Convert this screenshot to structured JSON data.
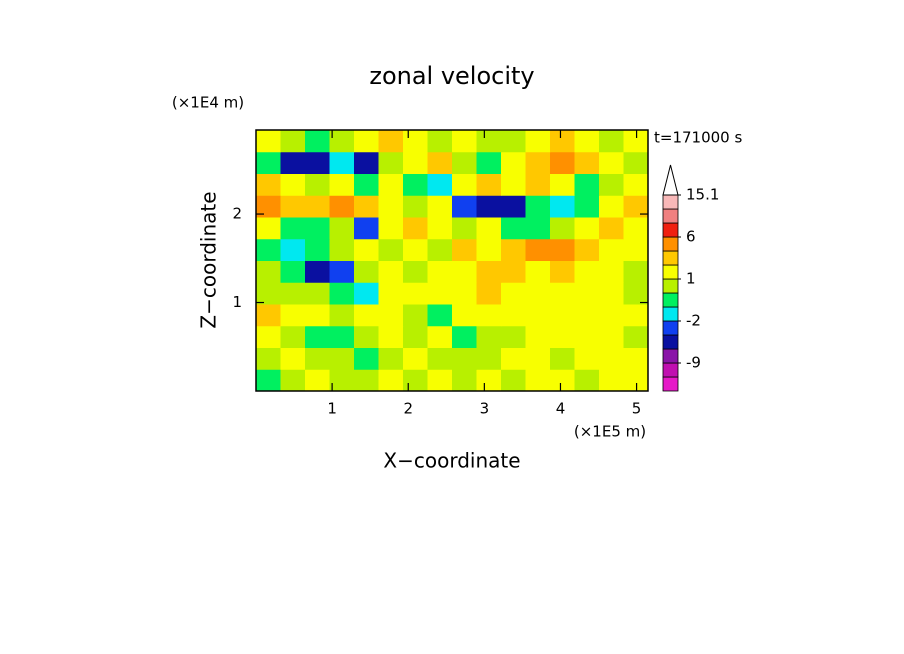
{
  "chart_data": {
    "type": "contour",
    "title": "zonal velocity",
    "xlabel": "X−coordinate",
    "ylabel": "Z−coordinate",
    "xunit": "(×1E5 m)",
    "yunit": "(×1E4 m)",
    "annotation": "t=171000 s",
    "xlim": [
      0,
      5.15
    ],
    "ylim": [
      0,
      2.95
    ],
    "xticks": [
      1,
      2,
      3,
      4,
      5
    ],
    "yticks": [
      1,
      2
    ],
    "z": [
      [
        -1,
        0,
        1,
        0,
        0,
        1,
        0,
        1,
        0,
        1,
        0,
        1,
        1,
        0,
        1,
        1
      ],
      [
        0,
        1,
        0,
        0,
        -1,
        0,
        1,
        0,
        0,
        0,
        1,
        1,
        0,
        1,
        1,
        1
      ],
      [
        1,
        0,
        -1,
        -1,
        0,
        1,
        0,
        1,
        -1,
        0,
        0,
        1,
        1,
        1,
        1,
        0
      ],
      [
        2,
        1,
        1,
        0,
        1,
        1,
        0,
        -1,
        1,
        1,
        1,
        1,
        1,
        1,
        1,
        1
      ],
      [
        0,
        0,
        0,
        -1,
        -2,
        1,
        1,
        1,
        1,
        2,
        1,
        1,
        1,
        1,
        1,
        0
      ],
      [
        0,
        -1,
        -4,
        -3,
        0,
        1,
        0,
        1,
        1,
        2,
        2,
        1,
        2,
        1,
        1,
        0
      ],
      [
        -1,
        -2,
        -1,
        0,
        1,
        0,
        1,
        0,
        2,
        1,
        2,
        3,
        3,
        2,
        1,
        1
      ],
      [
        1,
        -1,
        -1,
        0,
        -3,
        1,
        2,
        1,
        0,
        1,
        -1,
        -1,
        0,
        1,
        2,
        1
      ],
      [
        3,
        2,
        2,
        3,
        2,
        1,
        0,
        1,
        -3,
        -4,
        -4,
        -1,
        -2,
        -1,
        1,
        2
      ],
      [
        2,
        1,
        0,
        1,
        -1,
        1,
        -1,
        -2,
        1,
        2,
        1,
        2,
        1,
        -1,
        0,
        1
      ],
      [
        -1,
        -4,
        -4,
        -2,
        -4,
        0,
        1,
        2,
        0,
        -1,
        1,
        2,
        4,
        2,
        1,
        0
      ],
      [
        1,
        0,
        -0.5,
        0,
        1,
        2,
        1,
        0,
        1,
        0,
        0,
        1,
        2,
        1,
        0,
        1
      ]
    ],
    "levels": [
      -15,
      -12,
      -9,
      -6,
      -3,
      -2,
      -1,
      0,
      1,
      2,
      3,
      6,
      9,
      12,
      15.1
    ],
    "level_colors": [
      "#e619c8",
      "#c010b0",
      "#8a14a8",
      "#0a10a0",
      "#1040f0",
      "#00e8f0",
      "#00f060",
      "#b8f000",
      "#f8ff00",
      "#ffc800",
      "#ff9000",
      "#f02010",
      "#f08080",
      "#f8b8b8"
    ],
    "colorbar_ticks": [
      15.1,
      6,
      1,
      -2,
      -9
    ]
  }
}
